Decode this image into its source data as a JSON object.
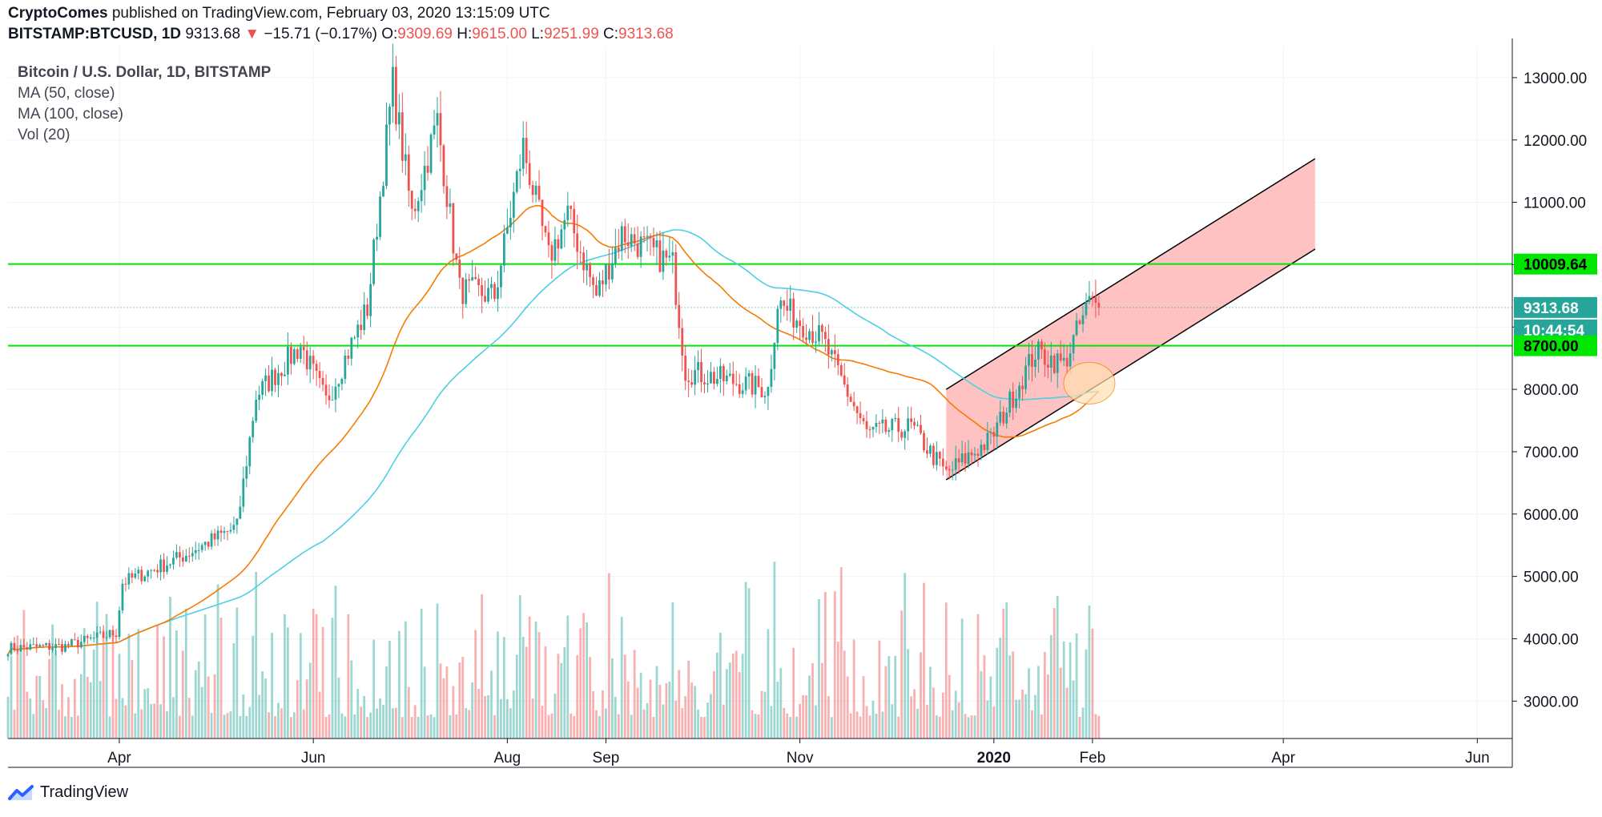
{
  "header": {
    "author": "CryptoComes",
    "published_text": "published on TradingView.com, February 03, 2020 13:15:09 UTC",
    "symbol": "BITSTAMP:BTCUSD, 1D",
    "last": "9313.68",
    "change": "−15.71 (−0.17%)",
    "o_label": "O:",
    "o_value": "9309.69",
    "h_label": "H:",
    "h_value": "9615.00",
    "l_label": "L:",
    "l_value": "9251.99",
    "c_label": "C:",
    "c_value": "9313.68"
  },
  "legend": {
    "title": "Bitcoin / U.S. Dollar, 1D, BITSTAMP",
    "ma50": "MA (50, close)",
    "ma100": "MA (100, close)",
    "vol": "Vol (20)"
  },
  "price_badges": {
    "upper_level": "10009.64",
    "last_price": "9313.68",
    "countdown": "10:44:54",
    "lower_level": "8700.00"
  },
  "footer": {
    "brand": "TradingView"
  },
  "colors": {
    "up": "#26a69a",
    "down": "#ef5350",
    "ma50": "#f57c00",
    "ma100": "#4dd0e1",
    "level_line": "#00e600",
    "channel_fill": "#ffb3b3"
  },
  "chart_data": {
    "type": "candlestick",
    "x_tick_labels": [
      "Apr",
      "Jun",
      "Aug",
      "Sep",
      "Nov",
      "2020",
      "Feb",
      "Apr",
      "Jun"
    ],
    "x_tick_dates": [
      "2019-04-01",
      "2019-06-01",
      "2019-08-01",
      "2019-09-01",
      "2019-11-01",
      "2020-01-01",
      "2020-02-01",
      "2020-04-01",
      "2020-06-01"
    ],
    "y_tick_labels": [
      "13000.00",
      "12000.00",
      "11000.00",
      "10000.00",
      "9000.00",
      "8000.00",
      "7000.00",
      "6000.00",
      "5000.00",
      "4000.00",
      "3000.00"
    ],
    "y_ticks": [
      13000,
      12000,
      11000,
      10000,
      9000,
      8000,
      7000,
      6000,
      5000,
      4000,
      3000
    ],
    "y_range": [
      2400,
      13500
    ],
    "x_range": [
      "2019-02-25",
      "2020-06-12"
    ],
    "horizontal_levels": [
      10009.64,
      8700.0
    ],
    "last_price": 9313.68,
    "channel": {
      "upper": [
        [
          "2019-12-17",
          8000
        ],
        [
          "2020-04-11",
          11700
        ]
      ],
      "lower": [
        [
          "2019-12-17",
          6550
        ],
        [
          "2020-04-11",
          10250
        ]
      ]
    },
    "highlight_circle": [
      "2020-01-31",
      8100
    ],
    "price_anchors": [
      [
        "2019-02-25",
        3850
      ],
      [
        "2019-03-15",
        3880
      ],
      [
        "2019-03-31",
        4100
      ],
      [
        "2019-04-02",
        4900
      ],
      [
        "2019-04-20",
        5300
      ],
      [
        "2019-05-08",
        5800
      ],
      [
        "2019-05-14",
        7900
      ],
      [
        "2019-05-28",
        8700
      ],
      [
        "2019-06-05",
        7800
      ],
      [
        "2019-06-18",
        9300
      ],
      [
        "2019-06-26",
        12900
      ],
      [
        "2019-07-02",
        10800
      ],
      [
        "2019-07-10",
        12300
      ],
      [
        "2019-07-17",
        9600
      ],
      [
        "2019-07-28",
        9500
      ],
      [
        "2019-08-06",
        11900
      ],
      [
        "2019-08-14",
        10100
      ],
      [
        "2019-08-20",
        10800
      ],
      [
        "2019-08-29",
        9500
      ],
      [
        "2019-09-06",
        10500
      ],
      [
        "2019-09-22",
        10000
      ],
      [
        "2019-09-26",
        8300
      ],
      [
        "2019-10-22",
        8000
      ],
      [
        "2019-10-25",
        9400
      ],
      [
        "2019-11-08",
        8800
      ],
      [
        "2019-11-22",
        7300
      ],
      [
        "2019-12-06",
        7400
      ],
      [
        "2019-12-17",
        6650
      ],
      [
        "2019-12-31",
        7200
      ],
      [
        "2020-01-14",
        8600
      ],
      [
        "2020-01-23",
        8400
      ],
      [
        "2020-01-31",
        9400
      ],
      [
        "2020-02-03",
        9313
      ]
    ],
    "volume_range": [
      0,
      220000
    ]
  }
}
